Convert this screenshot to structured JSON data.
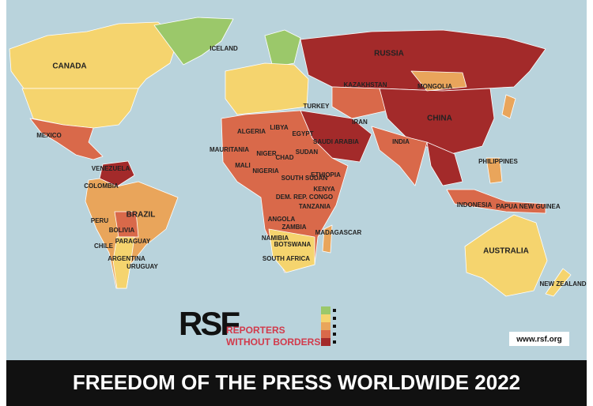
{
  "header": {
    "title": "FREEDOM OF THE PRESS WORLDWIDE 2022"
  },
  "logo": {
    "mark": "RSF",
    "line1": "REPORTERS",
    "line2": "WITHOUT BORDERS"
  },
  "url": "www.rsf.org",
  "legend": {
    "colors": [
      "#9bc86a",
      "#f5d46e",
      "#e9a55b",
      "#d9694a",
      "#a32a2a"
    ]
  },
  "map": {
    "labels": [
      "CANADA",
      "RUSSIA",
      "CHINA",
      "INDIA",
      "BRAZIL",
      "AUSTRALIA",
      "MEXICO",
      "KAZAKHSTAN",
      "MONGOLIA",
      "ALGERIA",
      "LIBYA",
      "EGYPT",
      "MALI",
      "NIGER",
      "CHAD",
      "SUDAN",
      "ETHIOPIA",
      "NIGERIA",
      "ANGOLA",
      "ZAMBIA",
      "NAMIBIA",
      "BOTSWANA",
      "SOUTH AFRICA",
      "MADAGASCAR",
      "PERU",
      "BOLIVIA",
      "COLOMBIA",
      "VENEZUELA",
      "ARGENTINA",
      "CHILE",
      "PARAGUAY",
      "URUGUAY",
      "INDONESIA",
      "PHILIPPINES",
      "NEW ZEALAND",
      "MAURITANIA",
      "TANZANIA",
      "KENYA",
      "SOUTH SUDAN",
      "DEM. REP. CONGO",
      "PAPUA NEW GUINEA",
      "SAUDI ARABIA",
      "IRAN",
      "TURKEY",
      "ICELAND"
    ]
  }
}
